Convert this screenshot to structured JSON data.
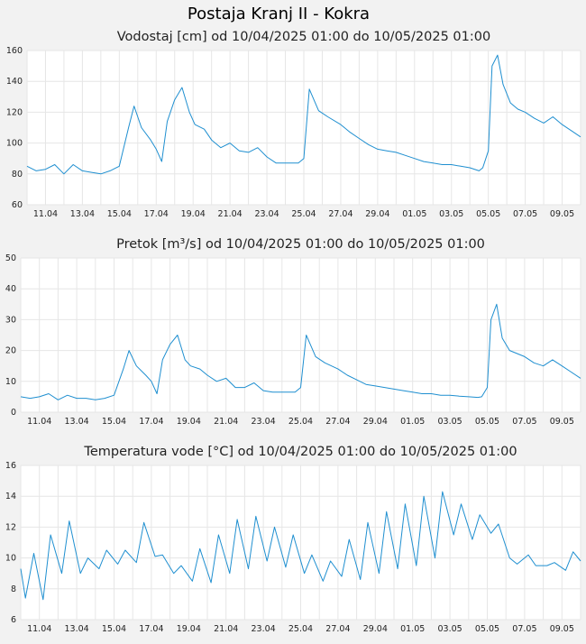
{
  "page": {
    "title": "Postaja Kranj II - Kokra"
  },
  "colors": {
    "line": "#1f8fd0",
    "grid": "#e6e6e6",
    "plot_bg": "#ffffff",
    "page_bg": "#f2f2f2"
  },
  "chart_data": [
    {
      "type": "line",
      "title": "Vodostaj [cm] od 10/04/2025 01:00 do 10/05/2025 01:00",
      "x_ticks": [
        "11.04",
        "13.04",
        "15.04",
        "17.04",
        "19.04",
        "21.04",
        "23.04",
        "25.04",
        "27.04",
        "29.04",
        "01.05",
        "03.05",
        "05.05",
        "07.05",
        "09.05"
      ],
      "x_tick_days": [
        1,
        3,
        5,
        7,
        9,
        11,
        13,
        15,
        17,
        19,
        21,
        23,
        25,
        27,
        29
      ],
      "xlim": [
        0,
        30
      ],
      "ylim": [
        60,
        160
      ],
      "y_ticks": [
        "60",
        "80",
        "100",
        "120",
        "140",
        "160"
      ],
      "x": [
        0,
        0.5,
        1,
        1.5,
        2,
        2.5,
        3,
        3.5,
        4,
        4.5,
        5,
        5.5,
        5.8,
        6.2,
        6.7,
        7,
        7.3,
        7.6,
        8,
        8.4,
        8.8,
        9.1,
        9.6,
        10,
        10.5,
        11,
        11.5,
        12,
        12.5,
        13,
        13.5,
        14,
        14.7,
        15,
        15.3,
        15.8,
        16.3,
        17,
        17.5,
        18,
        18.5,
        19,
        19.5,
        20,
        20.5,
        21,
        21.5,
        22,
        22.5,
        23,
        23.5,
        24,
        24.5,
        24.7,
        25,
        25.2,
        25.5,
        25.8,
        26.2,
        26.6,
        27,
        27.5,
        28,
        28.5,
        29,
        29.5,
        30
      ],
      "y": [
        85,
        82,
        83,
        86,
        80,
        86,
        82,
        81,
        80,
        82,
        85,
        110,
        124,
        110,
        102,
        96,
        88,
        114,
        128,
        136,
        120,
        112,
        109,
        102,
        97,
        100,
        95,
        94,
        97,
        91,
        87,
        87,
        87,
        90,
        135,
        121,
        117,
        112,
        107,
        103,
        99,
        96,
        95,
        94,
        92,
        90,
        88,
        87,
        86,
        86,
        85,
        84,
        82,
        84,
        95,
        150,
        157,
        138,
        126,
        122,
        120,
        116,
        113,
        117,
        112,
        108,
        104
      ]
    },
    {
      "type": "line",
      "title": "Pretok [m³/s] od 10/04/2025 01:00 do 10/05/2025 01:00",
      "x_ticks": [
        "11.04",
        "13.04",
        "15.04",
        "17.04",
        "19.04",
        "21.04",
        "23.04",
        "25.04",
        "27.04",
        "29.04",
        "01.05",
        "03.05",
        "05.05",
        "07.05",
        "09.05"
      ],
      "x_tick_days": [
        1,
        3,
        5,
        7,
        9,
        11,
        13,
        15,
        17,
        19,
        21,
        23,
        25,
        27,
        29
      ],
      "xlim": [
        0,
        30
      ],
      "ylim": [
        0,
        50
      ],
      "y_ticks": [
        "0",
        "10",
        "20",
        "30",
        "40",
        "50"
      ],
      "x": [
        0,
        0.5,
        1,
        1.5,
        2,
        2.5,
        3,
        3.5,
        4,
        4.5,
        5,
        5.5,
        5.8,
        6.2,
        6.7,
        7,
        7.3,
        7.6,
        8,
        8.4,
        8.8,
        9.1,
        9.6,
        10,
        10.5,
        11,
        11.5,
        12,
        12.5,
        13,
        13.5,
        14,
        14.7,
        15,
        15.3,
        15.8,
        16.3,
        17,
        17.5,
        18,
        18.5,
        19,
        19.5,
        20,
        20.5,
        21,
        21.5,
        22,
        22.5,
        23,
        23.5,
        24,
        24.5,
        24.7,
        25,
        25.2,
        25.5,
        25.8,
        26.2,
        26.6,
        27,
        27.5,
        28,
        28.5,
        29,
        29.5,
        30
      ],
      "y": [
        5,
        4.5,
        5,
        6,
        4,
        5.5,
        4.5,
        4.5,
        4,
        4.5,
        5.5,
        14,
        20,
        15,
        12,
        10,
        6,
        17,
        22,
        25,
        17,
        15,
        14,
        12,
        10,
        11,
        8,
        8,
        9.5,
        7,
        6.5,
        6.5,
        6.5,
        8,
        25,
        18,
        16,
        14,
        12,
        10.5,
        9,
        8.5,
        8,
        7.5,
        7,
        6.5,
        6,
        6,
        5.5,
        5.5,
        5.2,
        5,
        4.8,
        5,
        8,
        30,
        35,
        24,
        20,
        19,
        18,
        16,
        15,
        17,
        15,
        13,
        11
      ]
    },
    {
      "type": "line",
      "title": "Temperatura vode [°C] od 10/04/2025 01:00 do 10/05/2025 01:00",
      "x_ticks": [
        "11.04",
        "13.04",
        "15.04",
        "17.04",
        "19.04",
        "21.04",
        "23.04",
        "25.04",
        "27.04",
        "29.04",
        "01.05",
        "03.05",
        "05.05",
        "07.05",
        "09.05"
      ],
      "x_tick_days": [
        1,
        3,
        5,
        7,
        9,
        11,
        13,
        15,
        17,
        19,
        21,
        23,
        25,
        27,
        29
      ],
      "xlim": [
        0,
        30
      ],
      "ylim": [
        6,
        16
      ],
      "y_ticks": [
        "6",
        "8",
        "10",
        "12",
        "14",
        "16"
      ],
      "x": [
        0,
        0.25,
        0.7,
        1.2,
        1.6,
        2.2,
        2.6,
        3.2,
        3.6,
        4.2,
        4.6,
        5.2,
        5.6,
        6.2,
        6.6,
        7.2,
        7.6,
        8.2,
        8.6,
        9.2,
        9.6,
        10.2,
        10.6,
        11.2,
        11.6,
        12.2,
        12.6,
        13.2,
        13.6,
        14.2,
        14.6,
        15.2,
        15.6,
        16.2,
        16.6,
        17.2,
        17.6,
        18.2,
        18.6,
        19.2,
        19.6,
        20.2,
        20.6,
        21.2,
        21.6,
        22.2,
        22.6,
        23.2,
        23.6,
        24.2,
        24.6,
        25.2,
        25.6,
        26.2,
        26.6,
        27.2,
        27.6,
        28.2,
        28.6,
        29.2,
        29.6,
        30
      ],
      "y": [
        9.3,
        7.4,
        10.3,
        7.3,
        11.5,
        9.0,
        12.4,
        9.0,
        10.0,
        9.3,
        10.5,
        9.6,
        10.5,
        9.7,
        12.3,
        10.1,
        10.2,
        9.0,
        9.5,
        8.5,
        10.6,
        8.4,
        11.5,
        9.0,
        12.5,
        9.3,
        12.7,
        9.8,
        12.0,
        9.4,
        11.5,
        9.0,
        10.2,
        8.5,
        9.8,
        8.8,
        11.2,
        8.6,
        12.3,
        9.0,
        13.0,
        9.3,
        13.5,
        9.5,
        14.0,
        10.0,
        14.3,
        11.5,
        13.5,
        11.2,
        12.8,
        11.6,
        12.2,
        10.0,
        9.6,
        10.2,
        9.5,
        9.5,
        9.7,
        9.2,
        10.4,
        9.8
      ]
    }
  ]
}
